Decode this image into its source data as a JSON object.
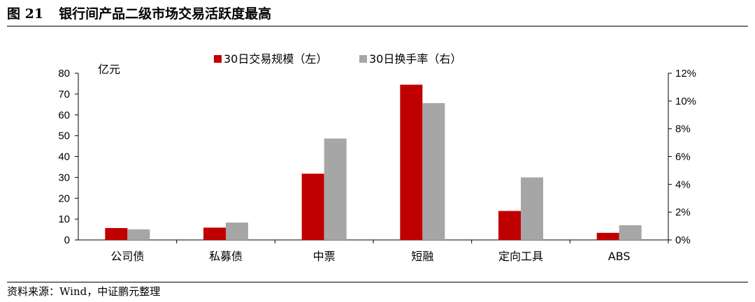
{
  "figure": {
    "number": "图 21",
    "title": "银行间产品二级市场交易活跃度最高",
    "source": "资料来源：Wind，中证鹏元整理"
  },
  "colors": {
    "left_series": "#C00000",
    "right_series": "#A6A6A6"
  },
  "chart_data": {
    "type": "bar",
    "categories": [
      "公司债",
      "私募债",
      "中票",
      "短融",
      "定向工具",
      "ABS"
    ],
    "series": [
      {
        "name": "30日交易规模（左）",
        "axis": "left",
        "values": [
          5.7,
          5.9,
          31.8,
          74.5,
          13.9,
          3.4
        ]
      },
      {
        "name": "30日换手率（右）",
        "axis": "right",
        "values": [
          0.76,
          1.25,
          7.3,
          9.85,
          4.5,
          1.06
        ]
      }
    ],
    "y_left": {
      "unit_label": "亿元",
      "ylim": [
        0,
        80
      ],
      "ticks": [
        "0",
        "10",
        "20",
        "30",
        "40",
        "50",
        "60",
        "70",
        "80"
      ]
    },
    "y_right": {
      "ylim": [
        0,
        12
      ],
      "ticks": [
        "0%",
        "2%",
        "4%",
        "6%",
        "8%",
        "10%",
        "12%"
      ]
    },
    "legend_position": "top-center",
    "grid": false
  }
}
